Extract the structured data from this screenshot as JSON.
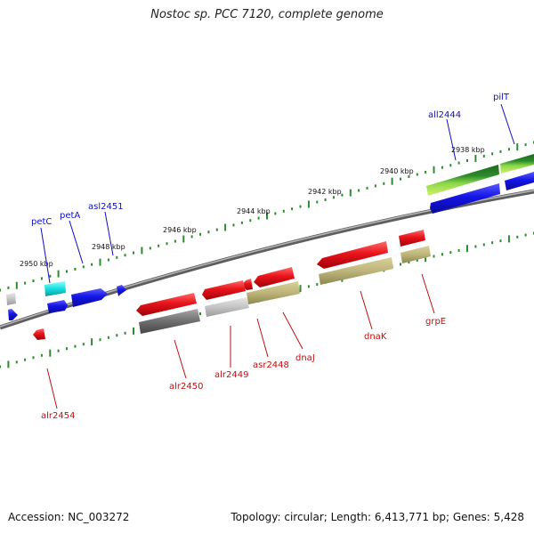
{
  "title": "Nostoc sp. PCC 7120, complete genome",
  "footer": {
    "accession": "Accession: NC_003272",
    "summary": "Topology: circular; Length: 6,413,771 bp; Genes: 5,428"
  },
  "scale_labels": [
    "2938 kbp",
    "2940 kbp",
    "2942 kbp",
    "2944 kbp",
    "2946 kbp",
    "2948 kbp",
    "2950 kbp"
  ],
  "genes_top": [
    "pilT",
    "all2444",
    "asl2451",
    "petA",
    "petC"
  ],
  "genes_bottom": [
    "grpE",
    "dnaK",
    "dnaJ",
    "asr2448",
    "alr2449",
    "alr2450",
    "alr2454"
  ],
  "colors": {
    "top_label": "#1010c0",
    "bottom_label": "#c01010",
    "red": "#e8141a",
    "blue": "#1414e6",
    "cyan": "#16dede",
    "green": "#2a8a2a",
    "tan": "#bdb57a",
    "gray": "#8a8a8a",
    "backbone": "#7a7a7a",
    "tick": "#2c8c2c"
  }
}
